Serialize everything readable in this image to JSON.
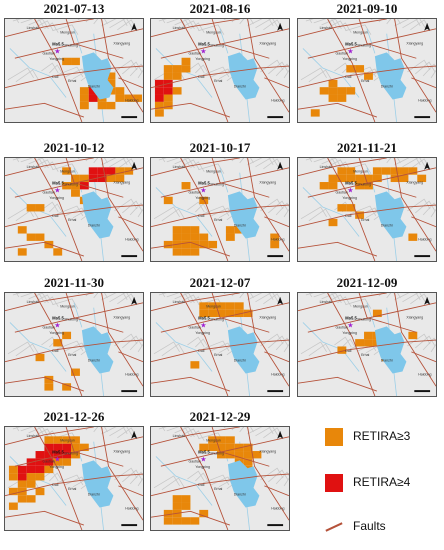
{
  "panels": [
    {
      "date": "2021-07-13",
      "cells": [
        [
          8,
          9,
          3
        ],
        [
          8,
          10,
          3
        ],
        [
          9,
          8,
          3
        ],
        [
          9,
          9,
          4
        ],
        [
          9,
          10,
          4
        ],
        [
          10,
          8,
          4
        ],
        [
          10,
          9,
          4
        ],
        [
          10,
          10,
          3
        ],
        [
          11,
          8,
          3
        ],
        [
          11,
          9,
          3
        ],
        [
          12,
          9,
          3
        ],
        [
          12,
          10,
          3
        ],
        [
          8,
          11,
          3
        ],
        [
          11,
          7,
          3
        ],
        [
          10,
          11,
          3
        ],
        [
          6,
          5,
          3
        ],
        [
          7,
          5,
          3
        ],
        [
          9,
          7,
          3
        ],
        [
          13,
          10,
          3
        ],
        [
          14,
          10,
          3
        ],
        [
          11,
          11,
          3
        ]
      ]
    },
    {
      "date": "2021-08-16",
      "cells": [
        [
          0,
          8,
          4
        ],
        [
          0,
          9,
          4
        ],
        [
          0,
          10,
          4
        ],
        [
          0,
          11,
          3
        ],
        [
          0,
          12,
          3
        ],
        [
          1,
          8,
          4
        ],
        [
          1,
          9,
          4
        ],
        [
          1,
          10,
          3
        ],
        [
          1,
          11,
          3
        ],
        [
          2,
          9,
          3
        ],
        [
          1,
          7,
          3
        ],
        [
          1,
          6,
          3
        ],
        [
          2,
          7,
          3
        ],
        [
          2,
          6,
          3
        ],
        [
          3,
          6,
          3
        ],
        [
          3,
          5,
          3
        ]
      ]
    },
    {
      "date": "2021-09-10",
      "cells": [
        [
          2,
          9,
          3
        ],
        [
          3,
          8,
          3
        ],
        [
          3,
          9,
          3
        ],
        [
          4,
          9,
          3
        ],
        [
          4,
          10,
          3
        ],
        [
          3,
          10,
          3
        ],
        [
          5,
          9,
          3
        ],
        [
          1,
          12,
          3
        ],
        [
          5,
          6,
          3
        ],
        [
          6,
          6,
          3
        ],
        [
          7,
          7,
          3
        ]
      ]
    },
    {
      "date": "2021-10-12",
      "cells": [
        [
          7,
          3,
          3
        ],
        [
          7,
          2,
          3
        ],
        [
          8,
          2,
          3
        ],
        [
          8,
          3,
          4
        ],
        [
          9,
          2,
          4
        ],
        [
          9,
          1,
          4
        ],
        [
          10,
          1,
          4
        ],
        [
          10,
          2,
          4
        ],
        [
          11,
          1,
          4
        ],
        [
          11,
          2,
          3
        ],
        [
          12,
          1,
          3
        ],
        [
          12,
          2,
          3
        ],
        [
          6,
          1,
          3
        ],
        [
          13,
          1,
          3
        ],
        [
          6,
          3,
          3
        ],
        [
          7,
          4,
          3
        ],
        [
          2,
          6,
          3
        ],
        [
          3,
          6,
          3
        ],
        [
          1,
          9,
          3
        ],
        [
          2,
          10,
          3
        ],
        [
          3,
          10,
          3
        ],
        [
          4,
          11,
          3
        ],
        [
          5,
          12,
          3
        ],
        [
          1,
          12,
          3
        ],
        [
          8,
          5,
          3
        ]
      ]
    },
    {
      "date": "2021-10-17",
      "cells": [
        [
          2,
          9,
          3
        ],
        [
          2,
          10,
          3
        ],
        [
          3,
          9,
          3
        ],
        [
          3,
          10,
          3
        ],
        [
          3,
          11,
          3
        ],
        [
          4,
          9,
          3
        ],
        [
          4,
          10,
          3
        ],
        [
          4,
          11,
          3
        ],
        [
          5,
          10,
          3
        ],
        [
          5,
          11,
          3
        ],
        [
          6,
          11,
          3
        ],
        [
          2,
          11,
          3
        ],
        [
          1,
          11,
          3
        ],
        [
          2,
          12,
          3
        ],
        [
          3,
          12,
          3
        ],
        [
          4,
          12,
          3
        ],
        [
          8,
          9,
          3
        ],
        [
          8,
          10,
          3
        ],
        [
          9,
          9,
          3
        ],
        [
          1,
          5,
          3
        ],
        [
          5,
          5,
          3
        ],
        [
          13,
          10,
          3
        ],
        [
          13,
          11,
          3
        ],
        [
          3,
          3,
          3
        ]
      ]
    },
    {
      "date": "2021-11-21",
      "cells": [
        [
          3,
          3,
          3
        ],
        [
          4,
          2,
          3
        ],
        [
          5,
          2,
          3
        ],
        [
          6,
          2,
          3
        ],
        [
          7,
          2,
          3
        ],
        [
          8,
          2,
          3
        ],
        [
          9,
          1,
          3
        ],
        [
          10,
          1,
          3
        ],
        [
          11,
          1,
          3
        ],
        [
          12,
          1,
          3
        ],
        [
          8,
          1,
          3
        ],
        [
          13,
          2,
          3
        ],
        [
          5,
          1,
          3
        ],
        [
          4,
          1,
          3
        ],
        [
          3,
          2,
          3
        ],
        [
          2,
          3,
          3
        ],
        [
          7,
          3,
          3
        ],
        [
          10,
          2,
          3
        ],
        [
          11,
          2,
          3
        ],
        [
          4,
          6,
          3
        ],
        [
          5,
          6,
          3
        ],
        [
          6,
          7,
          3
        ],
        [
          3,
          8,
          3
        ],
        [
          9,
          7,
          3
        ],
        [
          10,
          8,
          3
        ],
        [
          12,
          10,
          3
        ],
        [
          6,
          3,
          3
        ]
      ]
    },
    {
      "date": "2021-11-30",
      "cells": [
        [
          6,
          5,
          3
        ],
        [
          5,
          6,
          3
        ],
        [
          4,
          11,
          3
        ],
        [
          4,
          12,
          3
        ],
        [
          3,
          8,
          3
        ],
        [
          7,
          10,
          3
        ],
        [
          6,
          12,
          3
        ]
      ]
    },
    {
      "date": "2021-12-07",
      "cells": [
        [
          5,
          1,
          3
        ],
        [
          6,
          1,
          3
        ],
        [
          7,
          1,
          3
        ],
        [
          7,
          2,
          3
        ],
        [
          8,
          1,
          3
        ],
        [
          6,
          2,
          3
        ],
        [
          8,
          2,
          3
        ],
        [
          10,
          2,
          3
        ],
        [
          9,
          1,
          3
        ],
        [
          5,
          2,
          3
        ],
        [
          9,
          2,
          3
        ],
        [
          4,
          9,
          3
        ]
      ]
    },
    {
      "date": "2021-12-09",
      "cells": [
        [
          7,
          5,
          3
        ],
        [
          8,
          5,
          3
        ],
        [
          8,
          6,
          3
        ],
        [
          9,
          6,
          3
        ],
        [
          9,
          7,
          4
        ],
        [
          10,
          7,
          3
        ],
        [
          9,
          8,
          3
        ],
        [
          10,
          8,
          3
        ],
        [
          7,
          6,
          3
        ],
        [
          6,
          6,
          3
        ],
        [
          8,
          2,
          3
        ],
        [
          12,
          5,
          3
        ],
        [
          4,
          7,
          3
        ]
      ]
    },
    {
      "date": "2021-12-26",
      "cells": [
        [
          3,
          3,
          4
        ],
        [
          3,
          4,
          4
        ],
        [
          4,
          2,
          4
        ],
        [
          4,
          3,
          4
        ],
        [
          4,
          4,
          4
        ],
        [
          5,
          2,
          4
        ],
        [
          5,
          3,
          4
        ],
        [
          5,
          4,
          3
        ],
        [
          6,
          2,
          4
        ],
        [
          6,
          3,
          4
        ],
        [
          7,
          2,
          3
        ],
        [
          2,
          4,
          4
        ],
        [
          2,
          5,
          4
        ],
        [
          3,
          5,
          4
        ],
        [
          1,
          5,
          4
        ],
        [
          1,
          6,
          4
        ],
        [
          2,
          6,
          3
        ],
        [
          0,
          6,
          3
        ],
        [
          0,
          5,
          3
        ],
        [
          1,
          7,
          3
        ],
        [
          0,
          8,
          3
        ],
        [
          1,
          8,
          3
        ],
        [
          2,
          7,
          3
        ],
        [
          3,
          6,
          3
        ],
        [
          4,
          5,
          3
        ],
        [
          6,
          1,
          3
        ],
        [
          7,
          1,
          3
        ],
        [
          8,
          2,
          3
        ],
        [
          5,
          1,
          3
        ],
        [
          4,
          1,
          3
        ],
        [
          1,
          9,
          3
        ],
        [
          0,
          10,
          3
        ],
        [
          2,
          9,
          3
        ],
        [
          3,
          8,
          3
        ],
        [
          6,
          4,
          3
        ],
        [
          7,
          3,
          3
        ]
      ]
    },
    {
      "date": "2021-12-29",
      "cells": [
        [
          6,
          1,
          3
        ],
        [
          7,
          1,
          3
        ],
        [
          7,
          2,
          3
        ],
        [
          8,
          1,
          3
        ],
        [
          8,
          2,
          3
        ],
        [
          9,
          2,
          3
        ],
        [
          6,
          2,
          3
        ],
        [
          5,
          2,
          3
        ],
        [
          8,
          3,
          3
        ],
        [
          9,
          3,
          3
        ],
        [
          10,
          2,
          3
        ],
        [
          10,
          3,
          3
        ],
        [
          7,
          3,
          3
        ],
        [
          9,
          4,
          3
        ],
        [
          10,
          4,
          3
        ],
        [
          9,
          5,
          3
        ],
        [
          10,
          5,
          3
        ],
        [
          11,
          3,
          3
        ],
        [
          3,
          9,
          3
        ],
        [
          2,
          9,
          3
        ],
        [
          2,
          10,
          3
        ],
        [
          3,
          10,
          3
        ],
        [
          1,
          11,
          3
        ],
        [
          2,
          11,
          3
        ],
        [
          1,
          12,
          3
        ],
        [
          2,
          12,
          3
        ],
        [
          3,
          12,
          3
        ],
        [
          4,
          12,
          3
        ],
        [
          5,
          11,
          3
        ]
      ]
    }
  ],
  "legend": {
    "r3": "RETIRA≥3",
    "r4": "RETIRA≥4",
    "faults": "Faults",
    "colors": {
      "r3": "#e8870a",
      "r4": "#e01111",
      "faults": "#b5523a"
    }
  },
  "map_labels": {
    "magnitude": "Ms5.5",
    "places": [
      "Linshan",
      "Mengcun",
      "Yongping",
      "Shuilong",
      "Gaotian",
      "Xiangyang",
      "Dali",
      "Erhai",
      "Dianzhi",
      "Haidong"
    ]
  },
  "colors": {
    "lake": "#7fc7ea",
    "background": "#e9e9e9",
    "epicenter": "#a020d0"
  }
}
